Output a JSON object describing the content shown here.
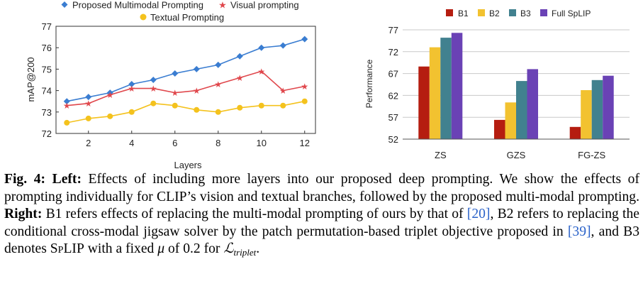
{
  "left_chart": {
    "legend": {
      "s1": "Proposed Multimodal Prompting",
      "s2": "Visual prompting",
      "s3": "Textual Prompting"
    },
    "xlabel": "Layers",
    "ylabel": "mAP@200"
  },
  "right_chart": {
    "legend": [
      "B1",
      "B2",
      "B3",
      "Full SpLIP"
    ],
    "ylabel": "Performance"
  },
  "caption": {
    "fig_label": "Fig. 4:",
    "left_label": "Left:",
    "text1": " Effects of including more layers into our proposed deep prompting. We show the effects of prompting individually for CLIP’s vision and textual branches, followed by the proposed multi-modal prompting. ",
    "right_label": "Right:",
    "text2": " B1 refers effects of replacing the multi-modal prompting of ours by that of ",
    "cite1": "[20]",
    "text3": ", B2 refers to replacing the conditional cross-modal jigsaw solver by the patch permutation-based triplet objective proposed in ",
    "cite2": "[39]",
    "text4": ", and B3 denotes ",
    "splip": "SpLIP",
    "text5": " with a fixed ",
    "mu": "μ",
    "text6": " of 0.2 for ",
    "loss": "ℒ",
    "loss_sub": "triplet",
    "text7": "."
  },
  "chart_data": [
    {
      "type": "line",
      "x": [
        1,
        2,
        3,
        4,
        5,
        6,
        7,
        8,
        9,
        10,
        11,
        12
      ],
      "series": [
        {
          "name": "Proposed Multimodal Prompting",
          "color": "#3a7dd1",
          "marker": "diamond",
          "values": [
            73.5,
            73.7,
            73.9,
            74.3,
            74.5,
            74.8,
            75.0,
            75.2,
            75.6,
            76.0,
            76.1,
            76.4
          ]
        },
        {
          "name": "Visual prompting",
          "color": "#e0474c",
          "marker": "star",
          "values": [
            73.3,
            73.4,
            73.8,
            74.1,
            74.1,
            73.9,
            74.0,
            74.3,
            74.6,
            74.9,
            74.0,
            74.2
          ]
        },
        {
          "name": "Textual Prompting",
          "color": "#f4c21d",
          "marker": "circle",
          "values": [
            72.5,
            72.7,
            72.8,
            73.0,
            73.4,
            73.3,
            73.1,
            73.0,
            73.2,
            73.3,
            73.3,
            73.5
          ]
        }
      ],
      "xticks": [
        2,
        4,
        6,
        8,
        10,
        12
      ],
      "yticks": [
        72,
        73,
        74,
        75,
        76,
        77
      ],
      "xlim": [
        0.5,
        12.5
      ],
      "ylim": [
        72,
        77
      ],
      "xlabel": "Layers",
      "ylabel": "mAP@200",
      "grid": "none",
      "legend_position": "top"
    },
    {
      "type": "bar",
      "categories": [
        "ZS",
        "GZS",
        "FG-ZS"
      ],
      "series": [
        {
          "name": "B1",
          "color": "#b51d10",
          "values": [
            68.6,
            56.4,
            54.8
          ]
        },
        {
          "name": "B2",
          "color": "#f2c230",
          "values": [
            73.0,
            60.4,
            63.2
          ]
        },
        {
          "name": "B3",
          "color": "#41818f",
          "values": [
            75.2,
            65.3,
            65.5
          ]
        },
        {
          "name": "Full SpLIP",
          "color": "#6a42b5",
          "values": [
            76.3,
            68.0,
            66.5
          ]
        }
      ],
      "yticks": [
        52,
        57,
        62,
        67,
        72,
        77
      ],
      "ylim": [
        52,
        77
      ],
      "xlabel": "",
      "ylabel": "Performance",
      "grid": "horizontal",
      "legend_position": "top"
    }
  ]
}
